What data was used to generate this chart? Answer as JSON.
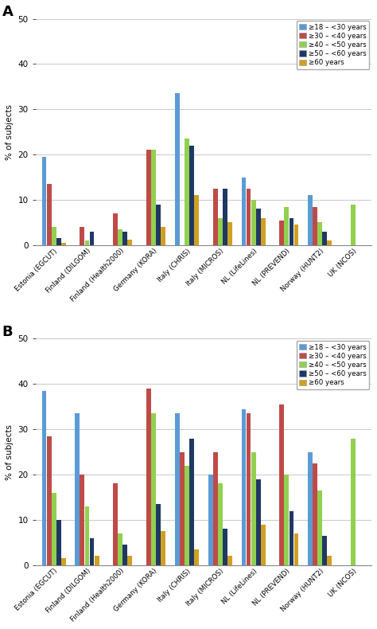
{
  "panel_A_label": "A",
  "panel_B_label": "B",
  "categories": [
    "Estonia (EGCUT)",
    "Finland (DILGOM)",
    "Finland (Health2000)",
    "Germany (KORA)",
    "Italy (CHRIS)",
    "Italy (MICROS)",
    "NL (LifeLines)",
    "NL (PREVEND)",
    "Norway (HUNT2)",
    "UK (NCOS)"
  ],
  "age_groups": [
    "≥18 – <30 years",
    "≥30 – <40 years",
    "≥40 – <50 years",
    "≥50 – <60 years",
    "≥60 years"
  ],
  "bar_colors": [
    "#5B9BD5",
    "#BE4B48",
    "#92D050",
    "#1F3864",
    "#CFA022"
  ],
  "panel_A_data": [
    [
      19.5,
      13.5,
      4.0,
      1.5,
      0.5
    ],
    [
      0,
      4.0,
      1.0,
      3.0,
      0.0
    ],
    [
      0,
      7.0,
      3.5,
      3.0,
      1.2
    ],
    [
      0,
      21.0,
      21.0,
      9.0,
      4.0
    ],
    [
      33.5,
      0.0,
      23.5,
      22.0,
      11.0
    ],
    [
      0,
      12.5,
      6.0,
      12.5,
      5.0
    ],
    [
      15.0,
      12.5,
      10.0,
      8.0,
      6.0
    ],
    [
      0,
      5.5,
      8.5,
      6.0,
      4.5
    ],
    [
      11.0,
      8.5,
      5.0,
      3.0,
      1.0
    ],
    [
      0,
      0.0,
      9.0,
      0.0,
      0.0
    ]
  ],
  "panel_B_data": [
    [
      38.5,
      28.5,
      16.0,
      10.0,
      1.5
    ],
    [
      33.5,
      20.0,
      13.0,
      6.0,
      2.0
    ],
    [
      0,
      18.0,
      7.0,
      4.5,
      2.0
    ],
    [
      0,
      39.0,
      33.5,
      13.5,
      7.5
    ],
    [
      33.5,
      25.0,
      22.0,
      28.0,
      3.5
    ],
    [
      20.0,
      25.0,
      18.0,
      8.0,
      2.0
    ],
    [
      34.5,
      33.5,
      25.0,
      19.0,
      9.0
    ],
    [
      0,
      35.5,
      20.0,
      12.0,
      7.0
    ],
    [
      25.0,
      22.5,
      16.5,
      6.5,
      2.0
    ],
    [
      0,
      0.0,
      28.0,
      0.0,
      0.0
    ]
  ],
  "ylabel": "% of subjects",
  "ylim": [
    0,
    50
  ],
  "yticks": [
    0,
    10,
    20,
    30,
    40,
    50
  ],
  "background_color": "#FFFFFF",
  "grid_color": "#C0C0C0"
}
